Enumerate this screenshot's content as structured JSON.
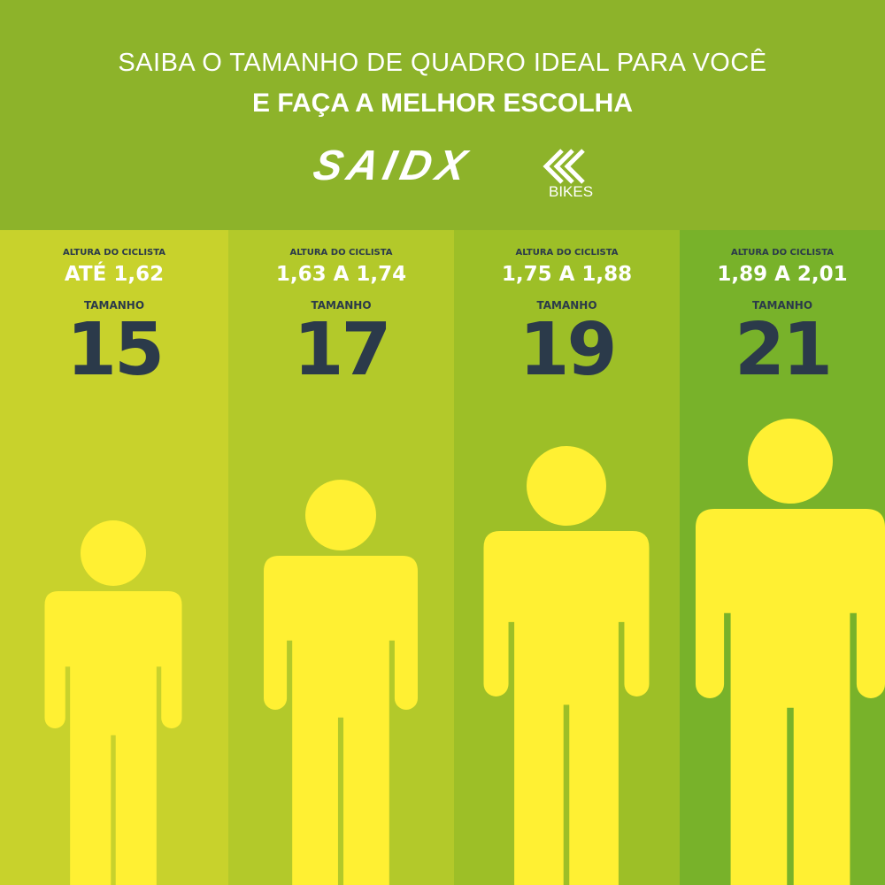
{
  "header": {
    "title_line1": "SAIBA O TAMANHO DE QUADRO IDEAL PARA VOCÊ",
    "title_line2": "E FAÇA A MELHOR ESCOLHA",
    "logo": {
      "brand": "SAIDX",
      "sub": "BIKES"
    }
  },
  "colors": {
    "header": "#8db32a",
    "figure": "#fff033",
    "number": "#2b3a4a",
    "columns": [
      "#c8d22c",
      "#b3c92a",
      "#9dbf27",
      "#78b22a"
    ]
  },
  "columns": [
    {
      "label": "ALTURA DO CICLISTA",
      "height": "ATÉ 1,62",
      "size_label": "TAMANHO",
      "size": "15"
    },
    {
      "label": "ALTURA DO CICLISTA",
      "height": "1,63 A 1,74",
      "size_label": "TAMANHO",
      "size": "17"
    },
    {
      "label": "ALTURA DO CICLISTA",
      "height": "1,75 A 1,88",
      "size_label": "TAMANHO",
      "size": "19"
    },
    {
      "label": "ALTURA DO CICLISTA",
      "height": "1,89 A 2,01",
      "size_label": "TAMANHO",
      "size": "21"
    }
  ]
}
